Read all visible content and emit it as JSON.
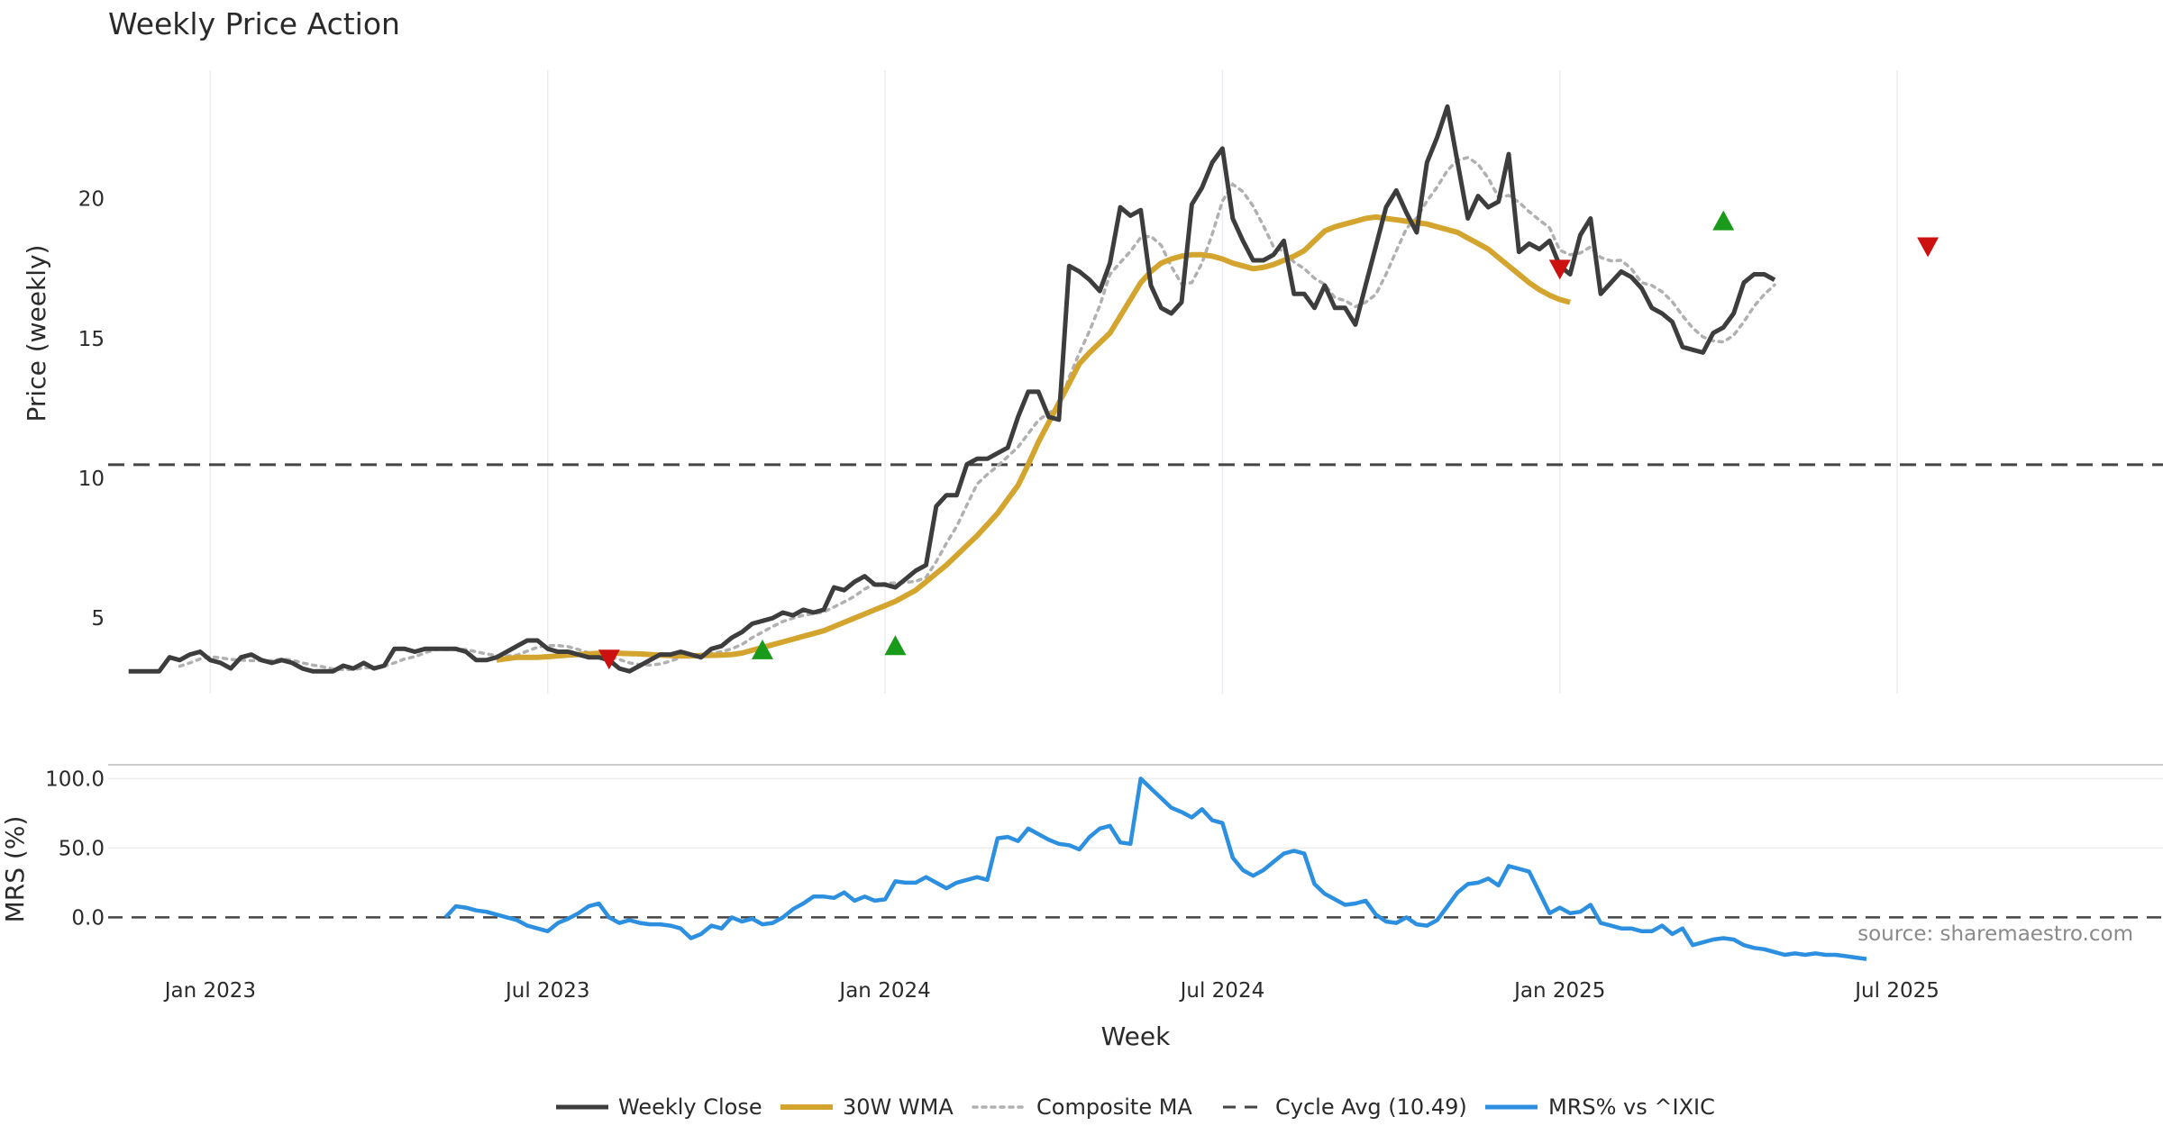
{
  "chart_data": {
    "type": "line",
    "title": "Weekly Price Action",
    "xlabel": "Week",
    "source": "source: sharemaestro.com",
    "x_ticks": [
      "Jan 2023",
      "Jul 2023",
      "Jan 2024",
      "Jul 2024",
      "Jan 2025",
      "Jul 2025"
    ],
    "x_tick_weeks": [
      8,
      41,
      74,
      107,
      140,
      173
    ],
    "x_range": [
      -2,
      199
    ],
    "colors": {
      "close": "#3d3d3d",
      "wma": "#d4a52e",
      "composite": "#b0b0b0",
      "cycle": "#444444",
      "mrs": "#2c8fe0",
      "buy": "#1a9a1a",
      "sell": "#cc1111"
    },
    "price_panel": {
      "ylabel": "Price (weekly)",
      "ylim": [
        2.3,
        24.6
      ],
      "yticks": [
        5,
        10,
        15,
        20
      ],
      "cycle_avg": 10.49,
      "series": {
        "close": [
          3.1,
          3.1,
          3.1,
          3.1,
          3.6,
          3.5,
          3.7,
          3.8,
          3.5,
          3.4,
          3.2,
          3.6,
          3.7,
          3.5,
          3.4,
          3.5,
          3.4,
          3.2,
          3.1,
          3.1,
          3.1,
          3.3,
          3.2,
          3.4,
          3.2,
          3.3,
          3.9,
          3.9,
          3.8,
          3.9,
          3.9,
          3.9,
          3.9,
          3.8,
          3.5,
          3.5,
          3.6,
          3.8,
          4.0,
          4.2,
          4.2,
          3.9,
          3.8,
          3.8,
          3.7,
          3.6,
          3.6,
          3.5,
          3.2,
          3.1,
          3.3,
          3.5,
          3.7,
          3.7,
          3.8,
          3.7,
          3.6,
          3.9,
          4.0,
          4.3,
          4.5,
          4.8,
          4.9,
          5.0,
          5.2,
          5.1,
          5.3,
          5.2,
          5.3,
          6.1,
          6.0,
          6.3,
          6.5,
          6.2,
          6.2,
          6.1,
          6.4,
          6.7,
          6.9,
          9.0,
          9.4,
          9.4,
          10.5,
          10.7,
          10.7,
          10.9,
          11.1,
          12.2,
          13.1,
          13.1,
          12.2,
          12.1,
          17.6,
          17.4,
          17.1,
          16.7,
          17.7,
          19.7,
          19.4,
          19.6,
          16.9,
          16.1,
          15.9,
          16.3,
          19.8,
          20.4,
          21.3,
          21.8,
          19.3,
          18.5,
          17.8,
          17.8,
          18.0,
          18.5,
          16.6,
          16.6,
          16.1,
          16.9,
          16.1,
          16.1,
          15.5,
          16.9,
          18.3,
          19.7,
          20.3,
          19.5,
          18.8,
          21.3,
          22.2,
          23.3,
          21.3,
          19.3,
          20.1,
          19.7,
          19.9,
          21.6,
          18.1,
          18.4,
          18.2,
          18.5,
          17.6,
          17.3,
          18.7,
          19.3,
          16.6,
          17.0,
          17.4,
          17.2,
          16.8,
          16.1,
          15.9,
          15.6,
          14.7,
          14.6,
          14.5,
          15.2,
          15.4,
          15.9,
          17.0,
          17.3,
          17.3,
          17.1
        ],
        "wma_start": 36,
        "wma": [
          3.5,
          3.55,
          3.6,
          3.6,
          3.6,
          3.62,
          3.65,
          3.68,
          3.7,
          3.72,
          3.74,
          3.75,
          3.74,
          3.73,
          3.72,
          3.7,
          3.68,
          3.66,
          3.65,
          3.65,
          3.66,
          3.67,
          3.68,
          3.7,
          3.75,
          3.85,
          3.95,
          4.05,
          4.15,
          4.25,
          4.35,
          4.45,
          4.55,
          4.7,
          4.85,
          5.0,
          5.15,
          5.3,
          5.45,
          5.6,
          5.8,
          6.0,
          6.3,
          6.6,
          6.9,
          7.25,
          7.6,
          7.95,
          8.35,
          8.75,
          9.25,
          9.75,
          10.5,
          11.3,
          12.0,
          12.7,
          13.4,
          14.1,
          14.5,
          14.85,
          15.2,
          15.8,
          16.4,
          17.0,
          17.4,
          17.7,
          17.85,
          17.95,
          18.0,
          18.0,
          17.95,
          17.85,
          17.7,
          17.6,
          17.5,
          17.55,
          17.65,
          17.8,
          17.95,
          18.15,
          18.5,
          18.85,
          19.0,
          19.1,
          19.2,
          19.3,
          19.35,
          19.3,
          19.25,
          19.2,
          19.15,
          19.1,
          19.0,
          18.9,
          18.8,
          18.6,
          18.4,
          18.2,
          17.9,
          17.6,
          17.3,
          17.0,
          16.75,
          16.55,
          16.4,
          16.3
        ]
      },
      "markers": [
        {
          "week": 47,
          "value": 3.55,
          "kind": "sell"
        },
        {
          "week": 62,
          "value": 3.85,
          "kind": "buy"
        },
        {
          "week": 75,
          "value": 4.0,
          "kind": "buy"
        },
        {
          "week": 140,
          "value": 17.5,
          "kind": "sell"
        },
        {
          "week": 156,
          "value": 19.2,
          "kind": "buy"
        },
        {
          "week": 176,
          "value": 18.3,
          "kind": "sell"
        }
      ]
    },
    "mrs_panel": {
      "ylabel": "MRS (%)",
      "ylim": [
        -40,
        110
      ],
      "yticks": [
        0.0,
        50.0,
        100.0
      ],
      "ytick_labels": [
        "0.0",
        "50.0",
        "100.0"
      ],
      "mrs_start": 31,
      "mrs": [
        0,
        8,
        7,
        5,
        4,
        2,
        0,
        -2,
        -6,
        -8,
        -10,
        -4,
        -1,
        3,
        8,
        10,
        0,
        -4,
        -2,
        -4,
        -5,
        -5,
        -6,
        -8,
        -15,
        -12,
        -6,
        -8,
        0,
        -3,
        -1,
        -5,
        -4,
        0,
        6,
        10,
        15,
        15,
        14,
        18,
        12,
        15,
        12,
        13,
        26,
        25,
        25,
        29,
        25,
        21,
        25,
        27,
        29,
        27,
        57,
        58,
        55,
        64,
        60,
        56,
        53,
        52,
        49,
        58,
        64,
        66,
        54,
        53,
        100,
        93,
        86,
        79,
        76,
        72,
        78,
        70,
        68,
        43,
        34,
        30,
        34,
        40,
        46,
        48,
        46,
        24,
        17,
        13,
        9,
        10,
        12,
        2,
        -3,
        -4,
        0,
        -5,
        -6,
        -2,
        8,
        18,
        24,
        25,
        28,
        23,
        37,
        35,
        33,
        18,
        3,
        7,
        3,
        4,
        9,
        -4,
        -6,
        -8,
        -8,
        -10,
        -10,
        -6,
        -12,
        -8,
        -20,
        -18,
        -16,
        -15,
        -16,
        -20,
        -22,
        -23,
        -25,
        -27,
        -26,
        -27,
        -26,
        -27,
        -27,
        -28,
        -29,
        -30
      ]
    },
    "legend": [
      "Weekly Close",
      "30W WMA",
      "Composite MA",
      "Cycle Avg (10.49)",
      "MRS% vs ^IXIC"
    ]
  }
}
